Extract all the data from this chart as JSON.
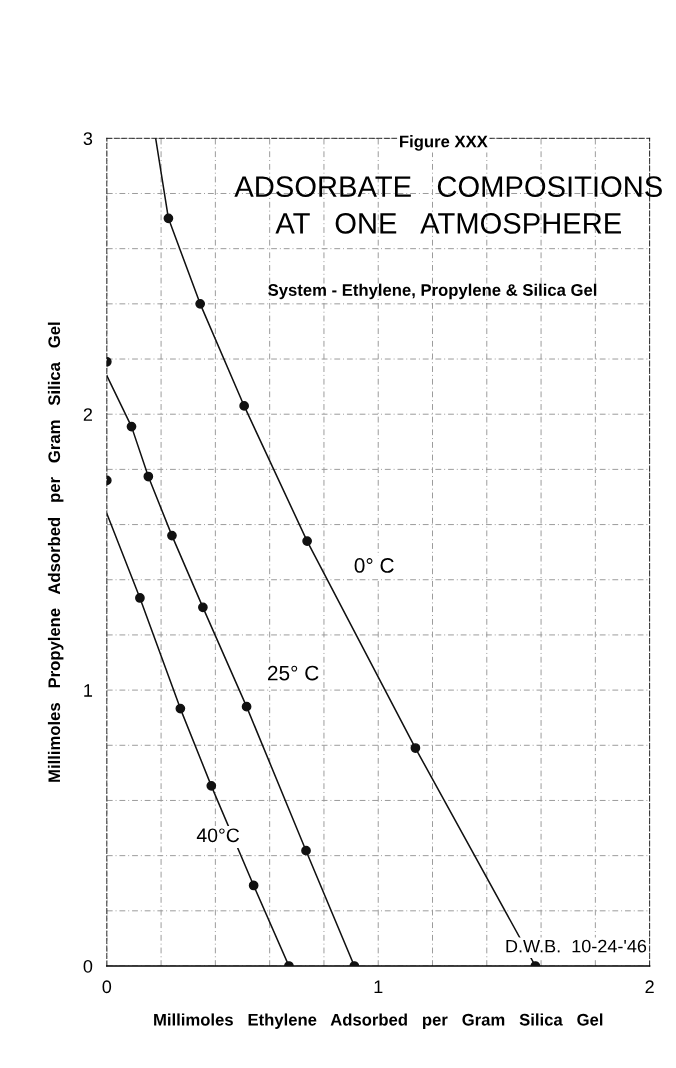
{
  "chart_data": {
    "type": "line",
    "title": "ADSORBATE   COMPOSITIONS\nAT   ONE   ATMOSPHERE",
    "subtitle": "System - Ethylene, Propylene & Silica Gel",
    "xlabel": "Millimoles   Ethylene   Adsorbed   per   Gram   Silica   Gel",
    "ylabel": "Millimoles   Propylene   Adsorbed   per   Gram   Silica   Gel",
    "xlim": [
      0,
      2
    ],
    "ylim": [
      0,
      3
    ],
    "xticks": [
      0,
      {
        "value": 0.2,
        "label": null
      },
      {
        "value": 0.4,
        "label": null
      },
      {
        "value": 0.6,
        "label": null
      },
      {
        "value": 0.8,
        "label": null
      },
      1,
      {
        "value": 1.2,
        "label": null
      },
      {
        "value": 1.4,
        "label": null
      },
      {
        "value": 1.6,
        "label": null
      },
      {
        "value": 1.8,
        "label": null
      },
      2
    ],
    "yticks": [
      0,
      {
        "value": 0.2,
        "label": null
      },
      {
        "value": 0.4,
        "label": null
      },
      {
        "value": 0.6,
        "label": null
      },
      {
        "value": 0.8,
        "label": null
      },
      1,
      {
        "value": 1.2,
        "label": null
      },
      {
        "value": 1.4,
        "label": null
      },
      {
        "value": 1.6,
        "label": null
      },
      {
        "value": 1.8,
        "label": null
      },
      2,
      {
        "value": 2.2,
        "label": null
      },
      {
        "value": 2.4,
        "label": null
      },
      {
        "value": 2.6,
        "label": null
      },
      {
        "value": 2.8,
        "label": null
      },
      3
    ],
    "grid": true,
    "legend": false,
    "series": [
      {
        "color": "#111111",
        "marker": "none",
        "line_style": "solid",
        "x": [
          0.18,
          0.227,
          0.344,
          0.506,
          0.738,
          1.137,
          1.579
        ],
        "values": [
          3.0,
          2.71,
          2.4,
          2.03,
          1.54,
          0.79,
          0
        ]
      },
      {
        "type": "scatter",
        "color": "#111111",
        "marker": "circle",
        "x": [
          0.227,
          0.344,
          0.506,
          0.738,
          1.137,
          1.579
        ],
        "values": [
          2.71,
          2.4,
          2.03,
          1.54,
          0.79,
          0
        ]
      },
      {
        "color": "#111111",
        "marker": "none",
        "line_style": "solid",
        "x": [
          0,
          0.091,
          0.153,
          0.24,
          0.354,
          0.515,
          0.734,
          0.912
        ],
        "values": [
          2.14,
          1.955,
          1.774,
          1.56,
          1.3,
          0.94,
          0.418,
          0
        ]
      },
      {
        "type": "scatter",
        "color": "#111111",
        "marker": "circle",
        "x": [
          0,
          0.091,
          0.153,
          0.24,
          0.354,
          0.515,
          0.734,
          0.912
        ],
        "values": [
          2.19,
          1.955,
          1.774,
          1.56,
          1.3,
          0.94,
          0.418,
          0
        ]
      },
      {
        "color": "#111111",
        "marker": "none",
        "line_style": "solid",
        "x": [
          0,
          0.122,
          0.271,
          0.385,
          0.541,
          0.671
        ],
        "values": [
          1.64,
          1.334,
          0.933,
          0.653,
          0.292,
          0
        ]
      },
      {
        "type": "scatter",
        "color": "#111111",
        "marker": "circle",
        "x": [
          0,
          0.122,
          0.271,
          0.385,
          0.541,
          0.671
        ],
        "values": [
          1.76,
          1.334,
          0.933,
          0.653,
          0.292,
          0
        ]
      }
    ],
    "annotations": [
      "Figure XXX",
      "0° C",
      "25° C",
      "40°C",
      "D.W.B.  10-24-'46"
    ]
  }
}
